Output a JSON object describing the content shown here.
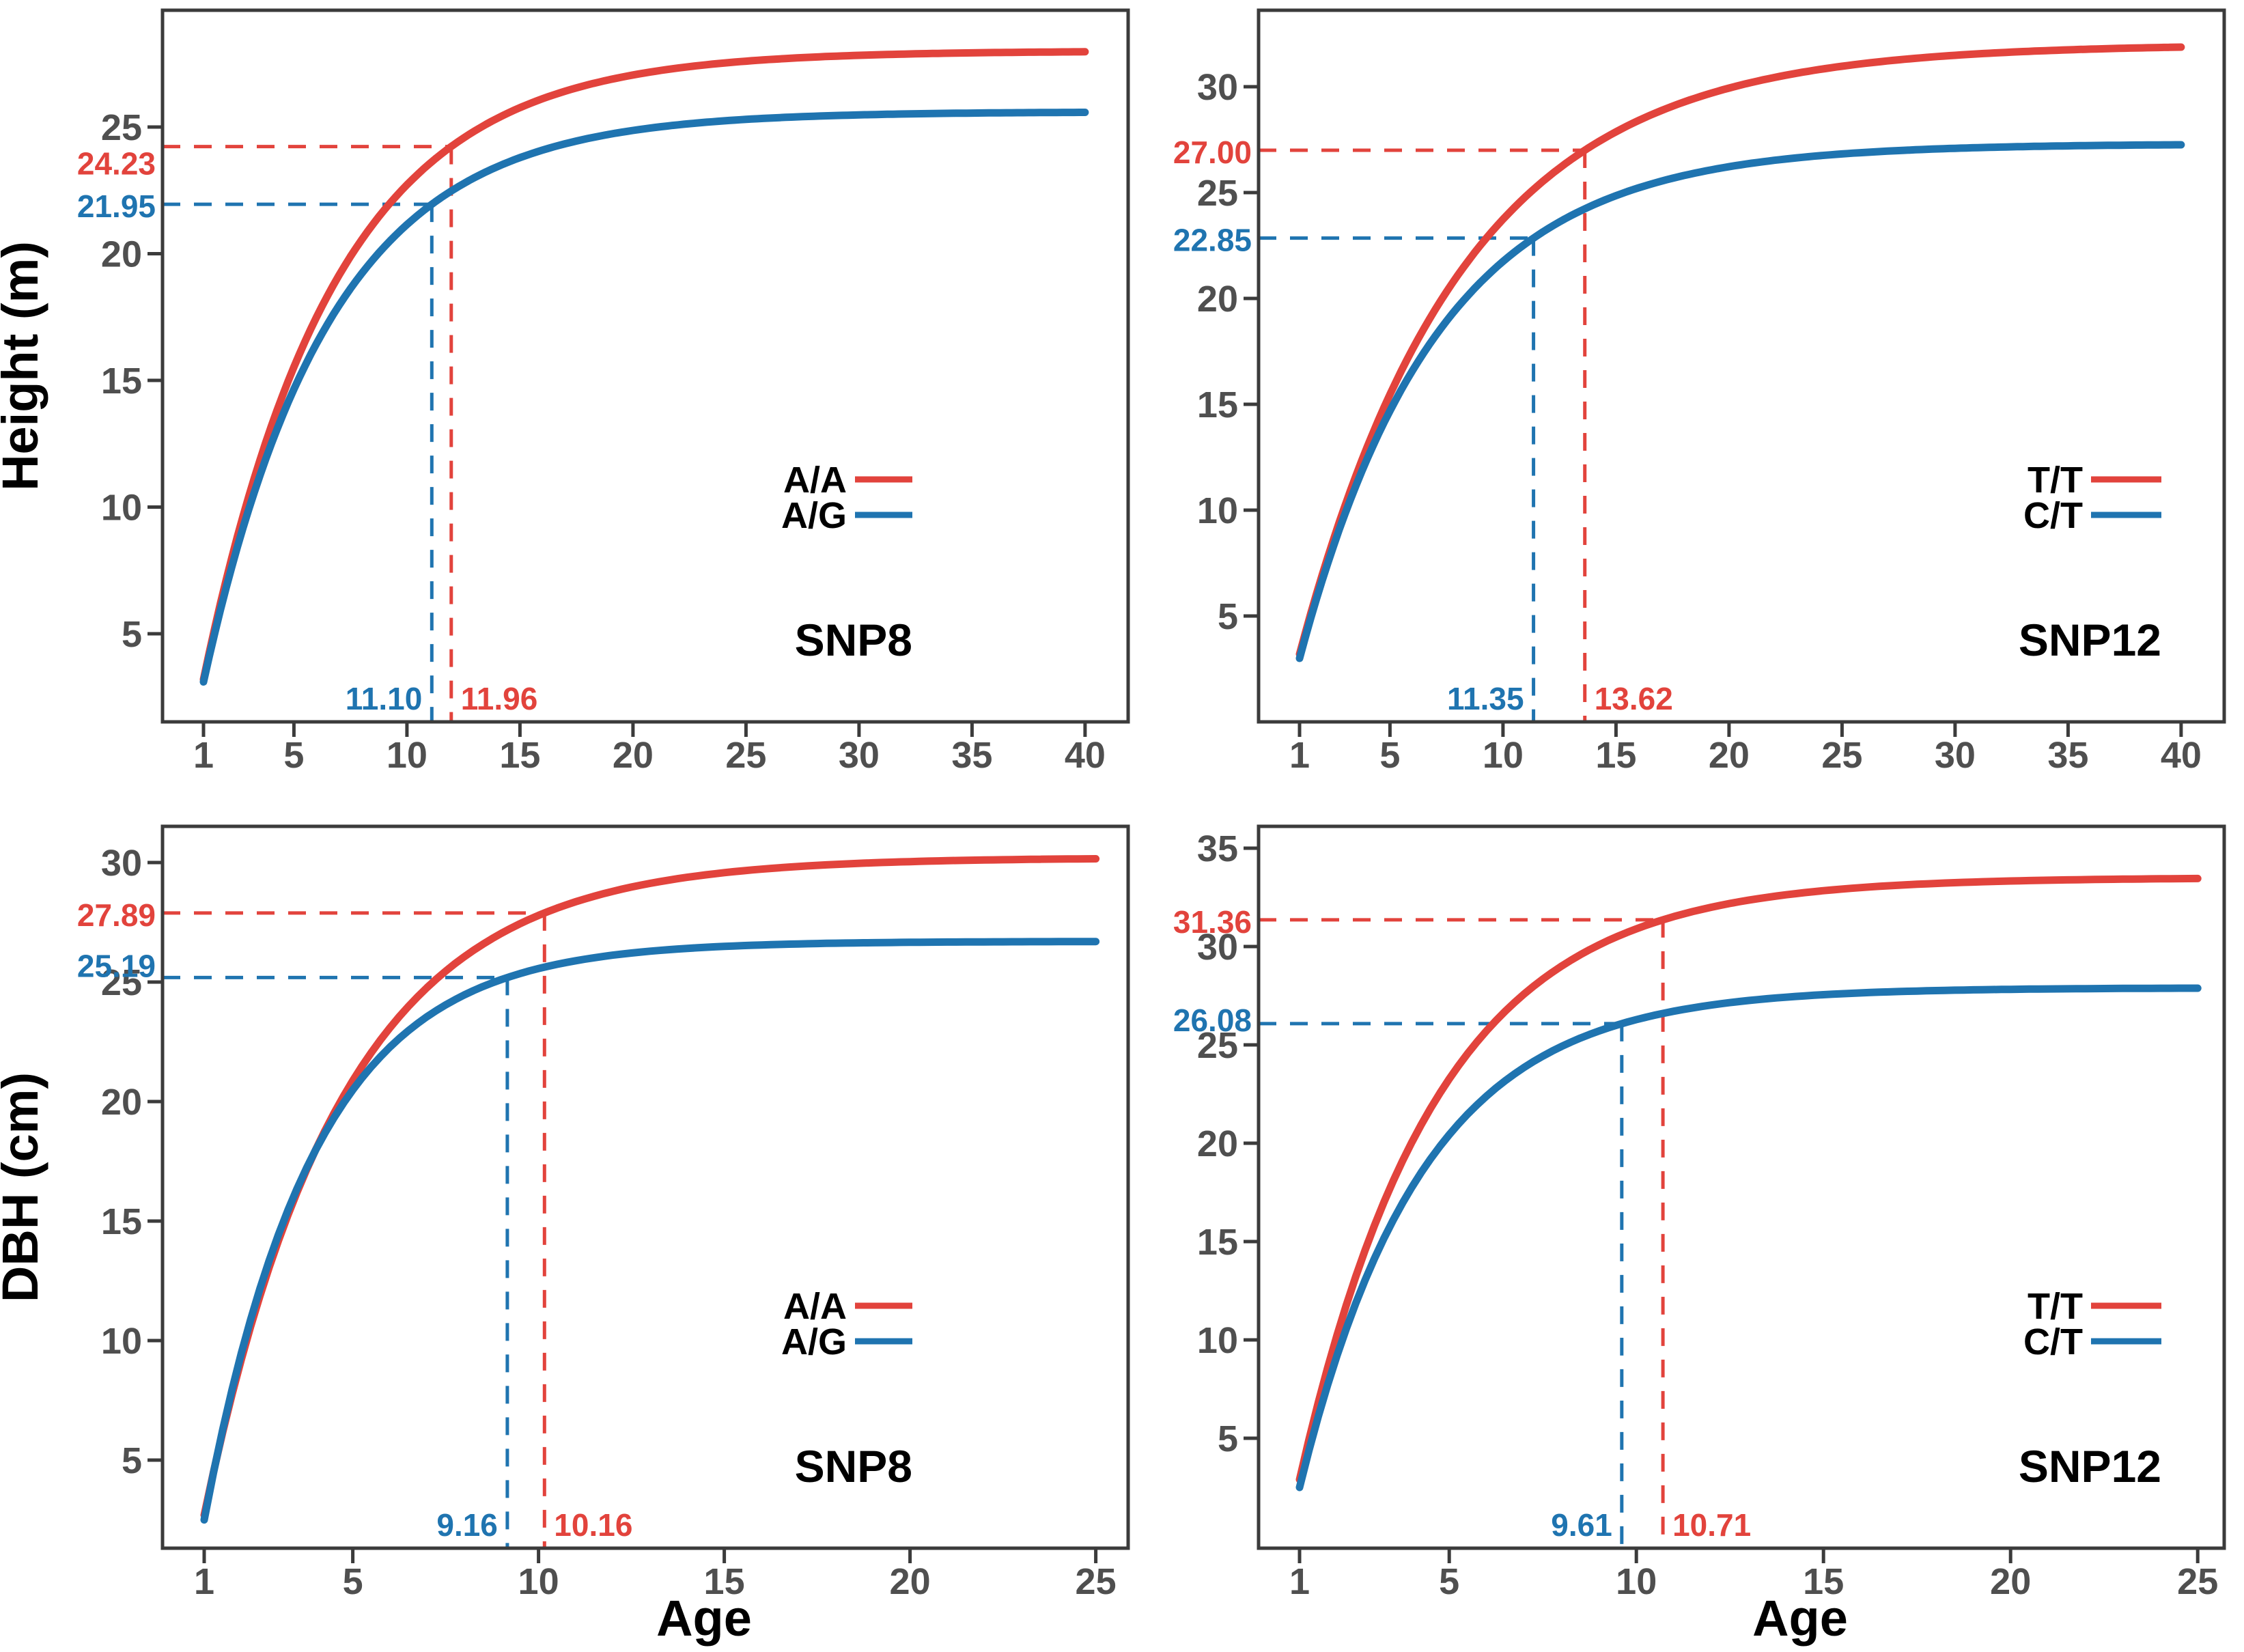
{
  "figure": {
    "background": "#ffffff",
    "description": "Growth curves of Height and DBH versus Age for two SNP genotype pairs"
  },
  "colors": {
    "red": "#E2433C",
    "blue": "#1F74B0",
    "axis": "#3b3b3b",
    "tick_label": "#4f4f4f",
    "text": "#000000"
  },
  "axis_titles": {
    "age": "Age",
    "height": "Height (m)",
    "dbh": "DBH (cm)"
  },
  "chart_data": [
    {
      "id": "height-snp8",
      "type": "line",
      "panel_label": "SNP8",
      "xlabel": "",
      "ylabel": "Height (m)",
      "x_ticks": [
        1,
        5,
        10,
        15,
        20,
        25,
        30,
        35,
        40
      ],
      "y_ticks": [
        5,
        10,
        15,
        20,
        25
      ],
      "x_range": [
        1,
        40
      ],
      "grid": false,
      "legend_position": "right-middle",
      "series": [
        {
          "name": "A/A",
          "color_key": "red",
          "start_age": 1,
          "start_value": 3.2,
          "asymptote": 28.0,
          "marker_age": 11.96,
          "marker_value": 24.23,
          "marker_age_label": "11.96",
          "marker_value_label": "24.23"
        },
        {
          "name": "A/G",
          "color_key": "blue",
          "start_age": 1,
          "start_value": 3.1,
          "asymptote": 25.6,
          "marker_age": 11.1,
          "marker_value": 21.95,
          "marker_age_label": "11.10",
          "marker_value_label": "21.95"
        }
      ]
    },
    {
      "id": "height-snp12",
      "type": "line",
      "panel_label": "SNP12",
      "xlabel": "",
      "ylabel": "",
      "x_ticks": [
        1,
        5,
        10,
        15,
        20,
        25,
        30,
        35,
        40
      ],
      "y_ticks": [
        5,
        10,
        15,
        20,
        25,
        30
      ],
      "x_range": [
        1,
        40
      ],
      "grid": false,
      "legend_position": "right-middle",
      "series": [
        {
          "name": "T/T",
          "color_key": "red",
          "start_age": 1,
          "start_value": 3.2,
          "asymptote": 32.0,
          "marker_age": 13.62,
          "marker_value": 27.0,
          "marker_age_label": "13.62",
          "marker_value_label": "27.00"
        },
        {
          "name": "C/T",
          "color_key": "blue",
          "start_age": 1,
          "start_value": 3.0,
          "asymptote": 27.3,
          "marker_age": 11.35,
          "marker_value": 22.85,
          "marker_age_label": "11.35",
          "marker_value_label": "22.85"
        }
      ]
    },
    {
      "id": "dbh-snp8",
      "type": "line",
      "panel_label": "SNP8",
      "xlabel": "Age",
      "ylabel": "DBH (cm)",
      "x_ticks": [
        1,
        5,
        10,
        15,
        20,
        25
      ],
      "y_ticks": [
        5,
        10,
        15,
        20,
        25,
        30
      ],
      "x_range": [
        1,
        25
      ],
      "grid": false,
      "legend_position": "right-middle",
      "series": [
        {
          "name": "A/A",
          "color_key": "red",
          "start_age": 1,
          "start_value": 2.7,
          "asymptote": 30.2,
          "marker_age": 10.16,
          "marker_value": 27.89,
          "marker_age_label": "10.16",
          "marker_value_label": "27.89"
        },
        {
          "name": "A/G",
          "color_key": "blue",
          "start_age": 1,
          "start_value": 2.5,
          "asymptote": 26.7,
          "marker_age": 9.16,
          "marker_value": 25.19,
          "marker_age_label": "9.16",
          "marker_value_label": "25.19"
        }
      ]
    },
    {
      "id": "dbh-snp12",
      "type": "line",
      "panel_label": "SNP12",
      "xlabel": "Age",
      "ylabel": "",
      "x_ticks": [
        1,
        5,
        10,
        15,
        20,
        25
      ],
      "y_ticks": [
        5,
        10,
        15,
        20,
        25,
        30,
        35
      ],
      "x_range": [
        1,
        25
      ],
      "grid": false,
      "legend_position": "right-middle",
      "series": [
        {
          "name": "T/T",
          "color_key": "red",
          "start_age": 1,
          "start_value": 2.9,
          "asymptote": 33.5,
          "marker_age": 10.71,
          "marker_value": 31.36,
          "marker_age_label": "10.71",
          "marker_value_label": "31.36"
        },
        {
          "name": "C/T",
          "color_key": "blue",
          "start_age": 1,
          "start_value": 2.5,
          "asymptote": 27.9,
          "marker_age": 9.61,
          "marker_value": 26.08,
          "marker_age_label": "9.61",
          "marker_value_label": "26.08"
        }
      ]
    }
  ]
}
